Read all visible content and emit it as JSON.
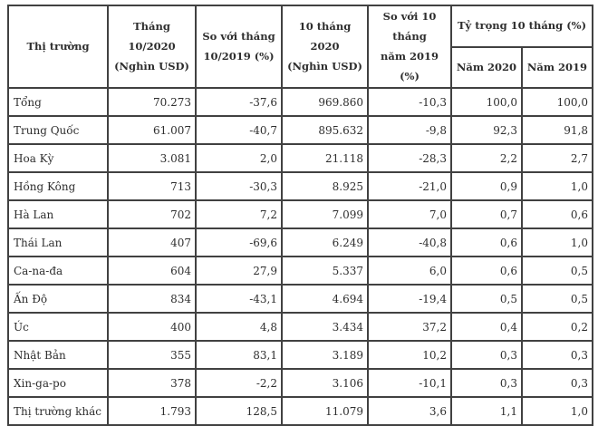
{
  "meta": {
    "description_visible": false,
    "border_color": "#414141",
    "text_color": "#2e2e2e",
    "background_color": "#ffffff"
  },
  "table": {
    "header": {
      "market": "Thị trường",
      "month_value": "Tháng 10/2020\n(Nghìn USD)",
      "month_change": "So với tháng\n10/2019 (%)",
      "ytd_value": "10 tháng 2020\n(Nghìn USD)",
      "ytd_change": "So với 10 tháng\nnăm 2019 (%)",
      "share_group": "Tỷ trọng 10 tháng (%)",
      "share_2020": "Năm 2020",
      "share_2019": "Năm 2019"
    },
    "rows": [
      [
        "Tổng",
        "70.273",
        "-37,6",
        "969.860",
        "-10,3",
        "100,0",
        "100,0"
      ],
      [
        "Trung Quốc",
        "61.007",
        "-40,7",
        "895.632",
        "-9,8",
        "92,3",
        "91,8"
      ],
      [
        "Hoa Kỳ",
        "3.081",
        "2,0",
        "21.118",
        "-28,3",
        "2,2",
        "2,7"
      ],
      [
        "Hồng Kông",
        "713",
        "-30,3",
        "8.925",
        "-21,0",
        "0,9",
        "1,0"
      ],
      [
        "Hà Lan",
        "702",
        "7,2",
        "7.099",
        "7,0",
        "0,7",
        "0,6"
      ],
      [
        "Thái Lan",
        "407",
        "-69,6",
        "6.249",
        "-40,8",
        "0,6",
        "1,0"
      ],
      [
        "Ca-na-đa",
        "604",
        "27,9",
        "5.337",
        "6,0",
        "0,6",
        "0,5"
      ],
      [
        "Ấn Độ",
        "834",
        "-43,1",
        "4.694",
        "-19,4",
        "0,5",
        "0,5"
      ],
      [
        "Úc",
        "400",
        "4,8",
        "3.434",
        "37,2",
        "0,4",
        "0,2"
      ],
      [
        "Nhật Bản",
        "355",
        "83,1",
        "3.189",
        "10,2",
        "0,3",
        "0,3"
      ],
      [
        "Xin-ga-po",
        "378",
        "-2,2",
        "3.106",
        "-10,1",
        "0,3",
        "0,3"
      ],
      [
        "Thị trường khác",
        "1.793",
        "128,5",
        "11.079",
        "3,6",
        "1,1",
        "1,0"
      ]
    ]
  }
}
